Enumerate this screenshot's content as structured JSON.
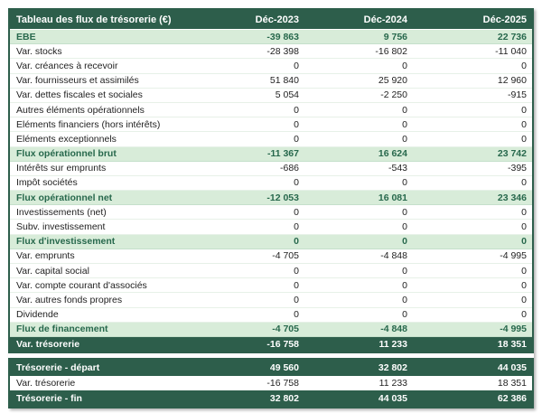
{
  "table": {
    "title": "Tableau des flux de trésorerie (€)",
    "columns": [
      "Déc-2023",
      "Déc-2024",
      "Déc-2025"
    ],
    "rows": [
      {
        "label": "EBE",
        "values": [
          "-39 863",
          "9 756",
          "22 736"
        ],
        "style": "highlight"
      },
      {
        "label": "Var. stocks",
        "values": [
          "-28 398",
          "-16 802",
          "-11 040"
        ],
        "style": "normal"
      },
      {
        "label": "Var. créances à recevoir",
        "values": [
          "0",
          "0",
          "0"
        ],
        "style": "normal"
      },
      {
        "label": "Var. fournisseurs et assimilés",
        "values": [
          "51 840",
          "25 920",
          "12 960"
        ],
        "style": "normal"
      },
      {
        "label": "Var. dettes fiscales et sociales",
        "values": [
          "5 054",
          "-2 250",
          "-915"
        ],
        "style": "normal"
      },
      {
        "label": "Autres éléments opérationnels",
        "values": [
          "0",
          "0",
          "0"
        ],
        "style": "normal"
      },
      {
        "label": "Eléments financiers (hors intérêts)",
        "values": [
          "0",
          "0",
          "0"
        ],
        "style": "normal"
      },
      {
        "label": "Eléments exceptionnels",
        "values": [
          "0",
          "0",
          "0"
        ],
        "style": "normal"
      },
      {
        "label": "Flux opérationnel brut",
        "values": [
          "-11 367",
          "16 624",
          "23 742"
        ],
        "style": "highlight"
      },
      {
        "label": "Intérêts sur emprunts",
        "values": [
          "-686",
          "-543",
          "-395"
        ],
        "style": "normal"
      },
      {
        "label": "Impôt sociétés",
        "values": [
          "0",
          "0",
          "0"
        ],
        "style": "normal"
      },
      {
        "label": "Flux opérationnel net",
        "values": [
          "-12 053",
          "16 081",
          "23 346"
        ],
        "style": "highlight"
      },
      {
        "label": "Investissements (net)",
        "values": [
          "0",
          "0",
          "0"
        ],
        "style": "normal"
      },
      {
        "label": "Subv. investissement",
        "values": [
          "0",
          "0",
          "0"
        ],
        "style": "normal"
      },
      {
        "label": "Flux d'investissement",
        "values": [
          "0",
          "0",
          "0"
        ],
        "style": "highlight"
      },
      {
        "label": "Var. emprunts",
        "values": [
          "-4 705",
          "-4 848",
          "-4 995"
        ],
        "style": "normal"
      },
      {
        "label": "Var. capital social",
        "values": [
          "0",
          "0",
          "0"
        ],
        "style": "normal"
      },
      {
        "label": "Var. compte courant d'associés",
        "values": [
          "0",
          "0",
          "0"
        ],
        "style": "normal"
      },
      {
        "label": "Var. autres fonds propres",
        "values": [
          "0",
          "0",
          "0"
        ],
        "style": "normal"
      },
      {
        "label": "Dividende",
        "values": [
          "0",
          "0",
          "0"
        ],
        "style": "normal"
      },
      {
        "label": "Flux de financement",
        "values": [
          "-4 705",
          "-4 848",
          "-4 995"
        ],
        "style": "highlight"
      },
      {
        "label": "Var. trésorerie",
        "values": [
          "-16 758",
          "11 233",
          "18 351"
        ],
        "style": "dark"
      }
    ],
    "summary_rows": [
      {
        "label": "Trésorerie - départ",
        "values": [
          "49 560",
          "32 802",
          "44 035"
        ],
        "style": "dark"
      },
      {
        "label": "Var. trésorerie",
        "values": [
          "-16 758",
          "11 233",
          "18 351"
        ],
        "style": "normal"
      },
      {
        "label": "Trésorerie - fin",
        "values": [
          "32 802",
          "44 035",
          "62 386"
        ],
        "style": "dark"
      }
    ],
    "colors": {
      "dark_green": "#2d5e4b",
      "light_green": "#d8ecd9",
      "green_text": "#27684c"
    }
  },
  "chart_data": {
    "type": "table",
    "title": "Tableau des flux de trésorerie (€)",
    "columns": [
      "Déc-2023",
      "Déc-2024",
      "Déc-2025"
    ],
    "rows": [
      [
        "EBE",
        -39863,
        9756,
        22736
      ],
      [
        "Var. stocks",
        -28398,
        -16802,
        -11040
      ],
      [
        "Var. créances à recevoir",
        0,
        0,
        0
      ],
      [
        "Var. fournisseurs et assimilés",
        51840,
        25920,
        12960
      ],
      [
        "Var. dettes fiscales et sociales",
        5054,
        -2250,
        -915
      ],
      [
        "Autres éléments opérationnels",
        0,
        0,
        0
      ],
      [
        "Eléments financiers (hors intérêts)",
        0,
        0,
        0
      ],
      [
        "Eléments exceptionnels",
        0,
        0,
        0
      ],
      [
        "Flux opérationnel brut",
        -11367,
        16624,
        23742
      ],
      [
        "Intérêts sur emprunts",
        -686,
        -543,
        -395
      ],
      [
        "Impôt sociétés",
        0,
        0,
        0
      ],
      [
        "Flux opérationnel net",
        -12053,
        16081,
        23346
      ],
      [
        "Investissements (net)",
        0,
        0,
        0
      ],
      [
        "Subv. investissement",
        0,
        0,
        0
      ],
      [
        "Flux d'investissement",
        0,
        0,
        0
      ],
      [
        "Var. emprunts",
        -4705,
        -4848,
        -4995
      ],
      [
        "Var. capital social",
        0,
        0,
        0
      ],
      [
        "Var. compte courant d'associés",
        0,
        0,
        0
      ],
      [
        "Var. autres fonds propres",
        0,
        0,
        0
      ],
      [
        "Dividende",
        0,
        0,
        0
      ],
      [
        "Flux de financement",
        -4705,
        -4848,
        -4995
      ],
      [
        "Var. trésorerie",
        -16758,
        11233,
        18351
      ],
      [
        "Trésorerie - départ",
        49560,
        32802,
        44035
      ],
      [
        "Var. trésorerie",
        -16758,
        11233,
        18351
      ],
      [
        "Trésorerie - fin",
        32802,
        44035,
        62386
      ]
    ]
  }
}
